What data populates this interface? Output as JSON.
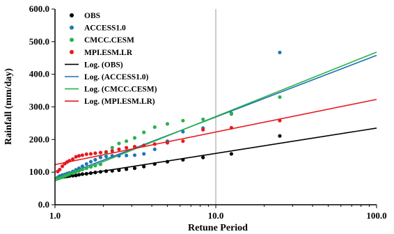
{
  "chart_data": {
    "type": "scatter",
    "x_scale": "log",
    "xlim": [
      1.0,
      100.0
    ],
    "ylim": [
      0.0,
      600.0
    ],
    "xticks": [
      1.0,
      10.0,
      100.0
    ],
    "xtick_labels": [
      "1.0",
      "10.0",
      "100.0"
    ],
    "yticks": [
      0,
      100,
      200,
      300,
      400,
      500,
      600
    ],
    "ytick_labels": [
      "0.0",
      "100.0",
      "200.0",
      "300.0",
      "400.0",
      "500.0",
      "600.0"
    ],
    "xlabel": "Retune Period",
    "ylabel": "Rainfall (mm/day)",
    "grid": "vertical line at 10",
    "legend_position": "top-left",
    "x": [
      1.04,
      1.07,
      1.11,
      1.15,
      1.19,
      1.23,
      1.29,
      1.35,
      1.41,
      1.48,
      1.57,
      1.67,
      1.78,
      1.92,
      2.08,
      2.27,
      2.5,
      2.78,
      3.13,
      3.57,
      4.17,
      5.0,
      6.25,
      8.33,
      12.5,
      25.0
    ],
    "series": [
      {
        "name": "OBS",
        "color": "#000000",
        "values": [
          82,
          84,
          85,
          86,
          87,
          88,
          89,
          90,
          92,
          94,
          95,
          97,
          99,
          101,
          103,
          104,
          106,
          109,
          112,
          117,
          125,
          132,
          138,
          145,
          156,
          211
        ]
      },
      {
        "name": "ACCESS1.0",
        "color": "#1f77b4",
        "values": [
          84,
          88,
          91,
          93,
          96,
          98,
          102,
          107,
          112,
          118,
          125,
          132,
          138,
          145,
          148,
          150,
          150,
          151,
          152,
          156,
          170,
          195,
          224,
          235,
          280,
          467
        ]
      },
      {
        "name": "CMCC.CESM",
        "color": "#2bb24c",
        "values": [
          80,
          82,
          84,
          88,
          91,
          94,
          97,
          101,
          104,
          108,
          112,
          116,
          120,
          124,
          158,
          175,
          188,
          195,
          205,
          222,
          238,
          248,
          258,
          262,
          278,
          330
        ]
      },
      {
        "name": "MPI.ESM.LR",
        "color": "#e8191f",
        "values": [
          102,
          108,
          118,
          126,
          131,
          135,
          140,
          147,
          150,
          152,
          155,
          156,
          158,
          160,
          162,
          165,
          170,
          175,
          178,
          182,
          186,
          190,
          195,
          230,
          236,
          258
        ]
      }
    ],
    "trendlines": [
      {
        "name": "Log. (OBS)",
        "color": "#000000",
        "y_at_1": 80,
        "y_at_100": 235
      },
      {
        "name": "Log. (ACCESS1.0)",
        "color": "#1f6fb0",
        "y_at_1": 80,
        "y_at_100": 458
      },
      {
        "name": "Log. (CMCC.CESM)",
        "color": "#27b24a",
        "y_at_1": 73,
        "y_at_100": 468
      },
      {
        "name": "Log. (MPI.ESM.LR)",
        "color": "#e8191f",
        "y_at_1": 123,
        "y_at_100": 323
      }
    ],
    "legend": [
      {
        "label": "OBS",
        "kind": "marker",
        "color": "#000000"
      },
      {
        "label": "ACCESS1.0",
        "kind": "marker",
        "color": "#1f77b4"
      },
      {
        "label": "CMCC.CESM",
        "kind": "marker",
        "color": "#2bb24c"
      },
      {
        "label": "MPI.ESM.LR",
        "kind": "marker",
        "color": "#e8191f"
      },
      {
        "label": "Log. (OBS)",
        "kind": "line",
        "color": "#000000"
      },
      {
        "label": "Log. (ACCESS1.0)",
        "kind": "line",
        "color": "#1f6fb0"
      },
      {
        "label": "Log. (CMCC.CESM)",
        "kind": "line",
        "color": "#27b24a"
      },
      {
        "label": "Log. (MPI.ESM.LR)",
        "kind": "line",
        "color": "#e8191f"
      }
    ]
  }
}
